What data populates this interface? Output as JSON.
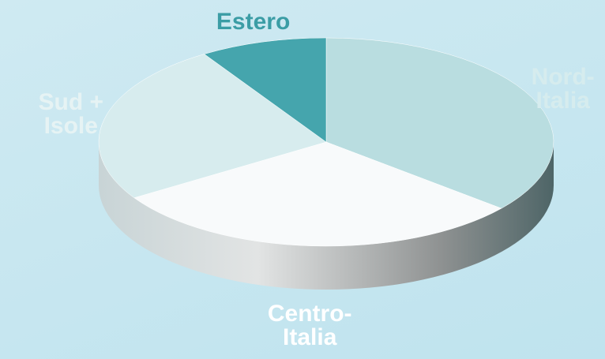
{
  "chart_data": {
    "type": "pie",
    "categories": [
      "Nord-Italia",
      "Centro-Italia",
      "Sud + Isole",
      "Estero"
    ],
    "values": [
      36,
      30,
      25,
      9
    ],
    "colors": [
      "#b9dde0",
      "#f8fafb",
      "#d7ecee",
      "#45a5ad"
    ],
    "label_colors": [
      "#d6ecee",
      "#ffffff",
      "#e6f3f4",
      "#3b9da5"
    ]
  }
}
